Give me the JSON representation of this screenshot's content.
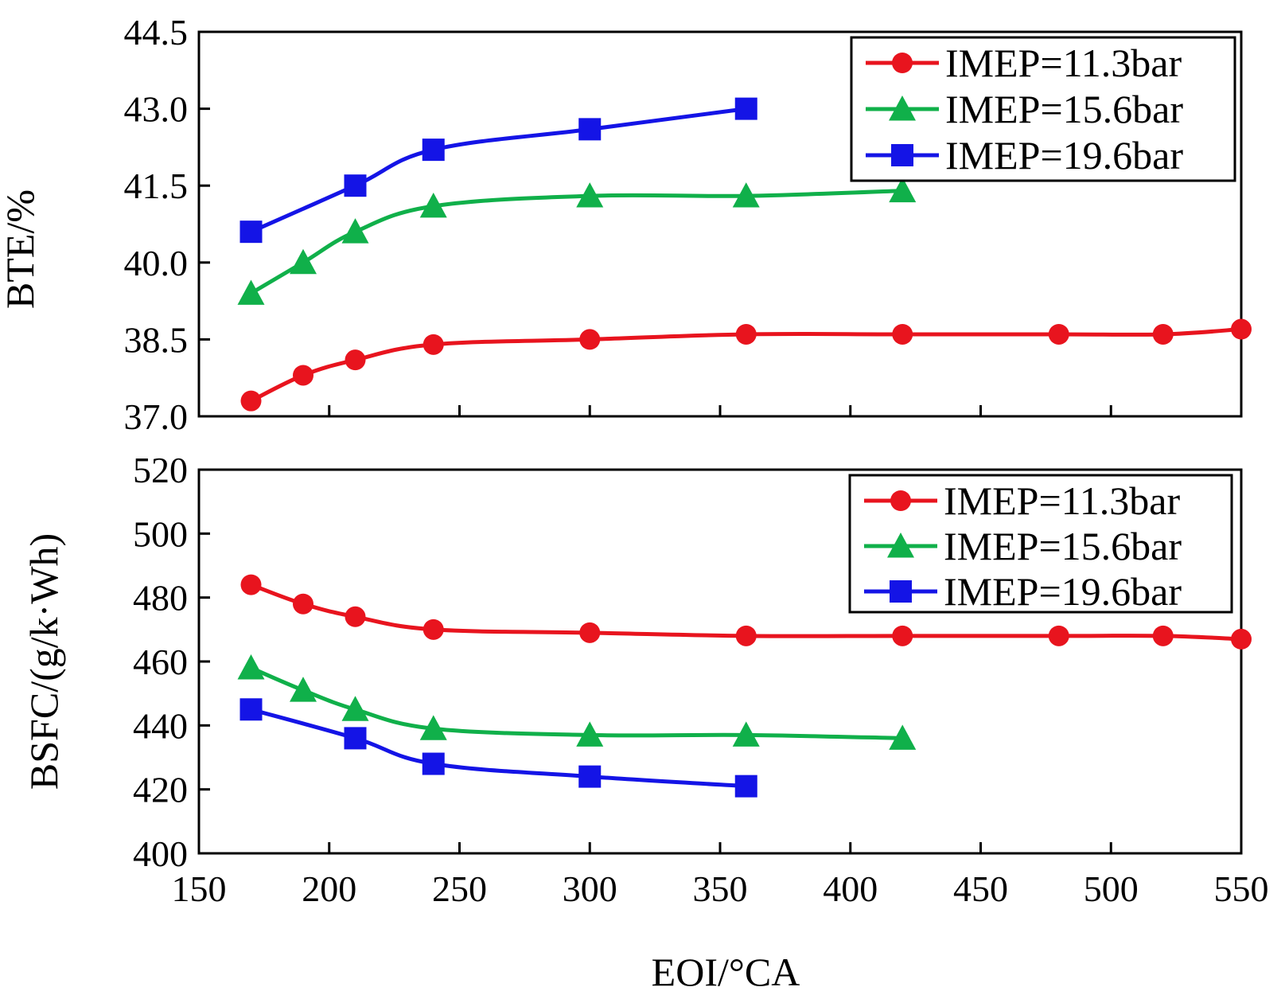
{
  "chart_data": [
    {
      "type": "line",
      "panel": "top",
      "title": "",
      "xlabel": "EOI/°CA",
      "ylabel": "BTE/%",
      "xlim": [
        150,
        550
      ],
      "ylim": [
        37.0,
        44.5
      ],
      "xticks": [
        150,
        200,
        250,
        300,
        350,
        400,
        450,
        500,
        550
      ],
      "xtick_labels_visible": false,
      "yticks": [
        37.0,
        38.5,
        40.0,
        41.5,
        43.0,
        44.5
      ],
      "ytick_labels": [
        "37.0",
        "38.5",
        "40.0",
        "41.5",
        "43.0",
        "44.5"
      ],
      "legend_position": "top-right",
      "series": [
        {
          "name": "IMEP=11.3bar",
          "color": "#e8141e",
          "marker": "circle",
          "x": [
            170,
            190,
            210,
            240,
            300,
            360,
            420,
            480,
            520,
            550
          ],
          "y": [
            37.3,
            37.8,
            38.1,
            38.4,
            38.5,
            38.6,
            38.6,
            38.6,
            38.6,
            38.7
          ]
        },
        {
          "name": "IMEP=15.6bar",
          "color": "#10b04a",
          "marker": "triangle",
          "x": [
            170,
            190,
            210,
            240,
            300,
            360,
            420
          ],
          "y": [
            39.4,
            40.0,
            40.6,
            41.1,
            41.3,
            41.3,
            41.4
          ]
        },
        {
          "name": "IMEP=19.6bar",
          "color": "#1414e6",
          "marker": "square",
          "x": [
            170,
            210,
            240,
            300,
            360
          ],
          "y": [
            40.6,
            41.5,
            42.2,
            42.6,
            43.0
          ]
        }
      ]
    },
    {
      "type": "line",
      "panel": "bottom",
      "title": "",
      "xlabel": "EOI/°CA",
      "ylabel": "BSFC/(g/k·Wh)",
      "xlim": [
        150,
        550
      ],
      "ylim": [
        400,
        520
      ],
      "xticks": [
        150,
        200,
        250,
        300,
        350,
        400,
        450,
        500,
        550
      ],
      "xtick_labels": [
        "150",
        "200",
        "250",
        "300",
        "350",
        "400",
        "450",
        "500",
        "550"
      ],
      "yticks": [
        400,
        420,
        440,
        460,
        480,
        500,
        520
      ],
      "ytick_labels": [
        "400",
        "420",
        "440",
        "460",
        "480",
        "500",
        "520"
      ],
      "legend_position": "top-right",
      "series": [
        {
          "name": "IMEP=11.3bar",
          "color": "#e8141e",
          "marker": "circle",
          "x": [
            170,
            190,
            210,
            240,
            300,
            360,
            420,
            480,
            520,
            550
          ],
          "y": [
            484,
            478,
            474,
            470,
            469,
            468,
            468,
            468,
            468,
            467
          ]
        },
        {
          "name": "IMEP=15.6bar",
          "color": "#10b04a",
          "marker": "triangle",
          "x": [
            170,
            190,
            210,
            240,
            300,
            360,
            420
          ],
          "y": [
            458,
            451,
            445,
            439,
            437,
            437,
            436
          ]
        },
        {
          "name": "IMEP=19.6bar",
          "color": "#1414e6",
          "marker": "square",
          "x": [
            170,
            210,
            240,
            300,
            360
          ],
          "y": [
            445,
            436,
            428,
            424,
            421
          ]
        }
      ]
    }
  ]
}
